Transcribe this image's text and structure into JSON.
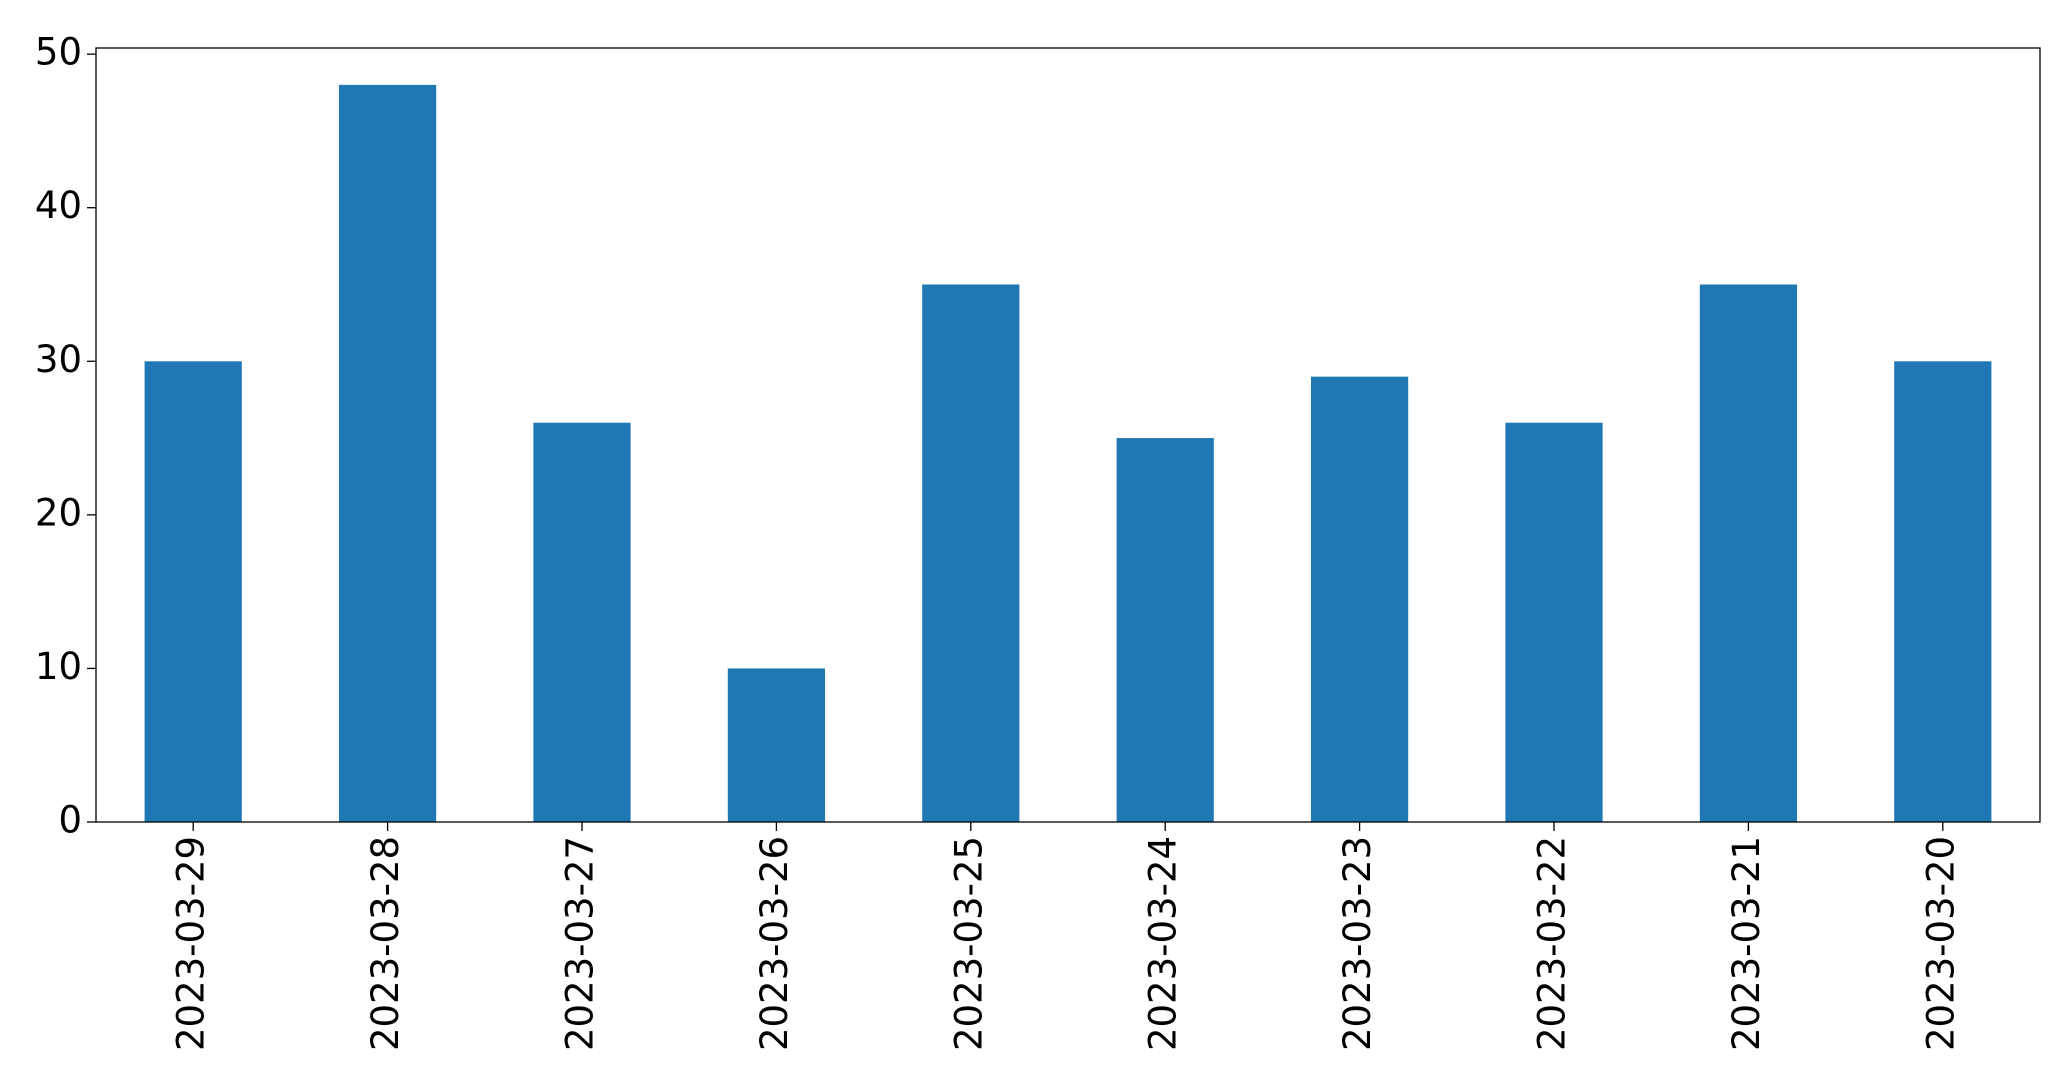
{
  "chart_data": {
    "type": "bar",
    "categories": [
      "2023-03-29",
      "2023-03-28",
      "2023-03-27",
      "2023-03-26",
      "2023-03-25",
      "2023-03-24",
      "2023-03-23",
      "2023-03-22",
      "2023-03-21",
      "2023-03-20"
    ],
    "values": [
      30,
      48,
      26,
      10,
      35,
      25,
      29,
      26,
      35,
      30
    ],
    "color": "#1f77b4",
    "ylim": [
      0,
      50.4
    ],
    "yticks": [
      0,
      10,
      20,
      30,
      40,
      50
    ],
    "grid": false
  }
}
